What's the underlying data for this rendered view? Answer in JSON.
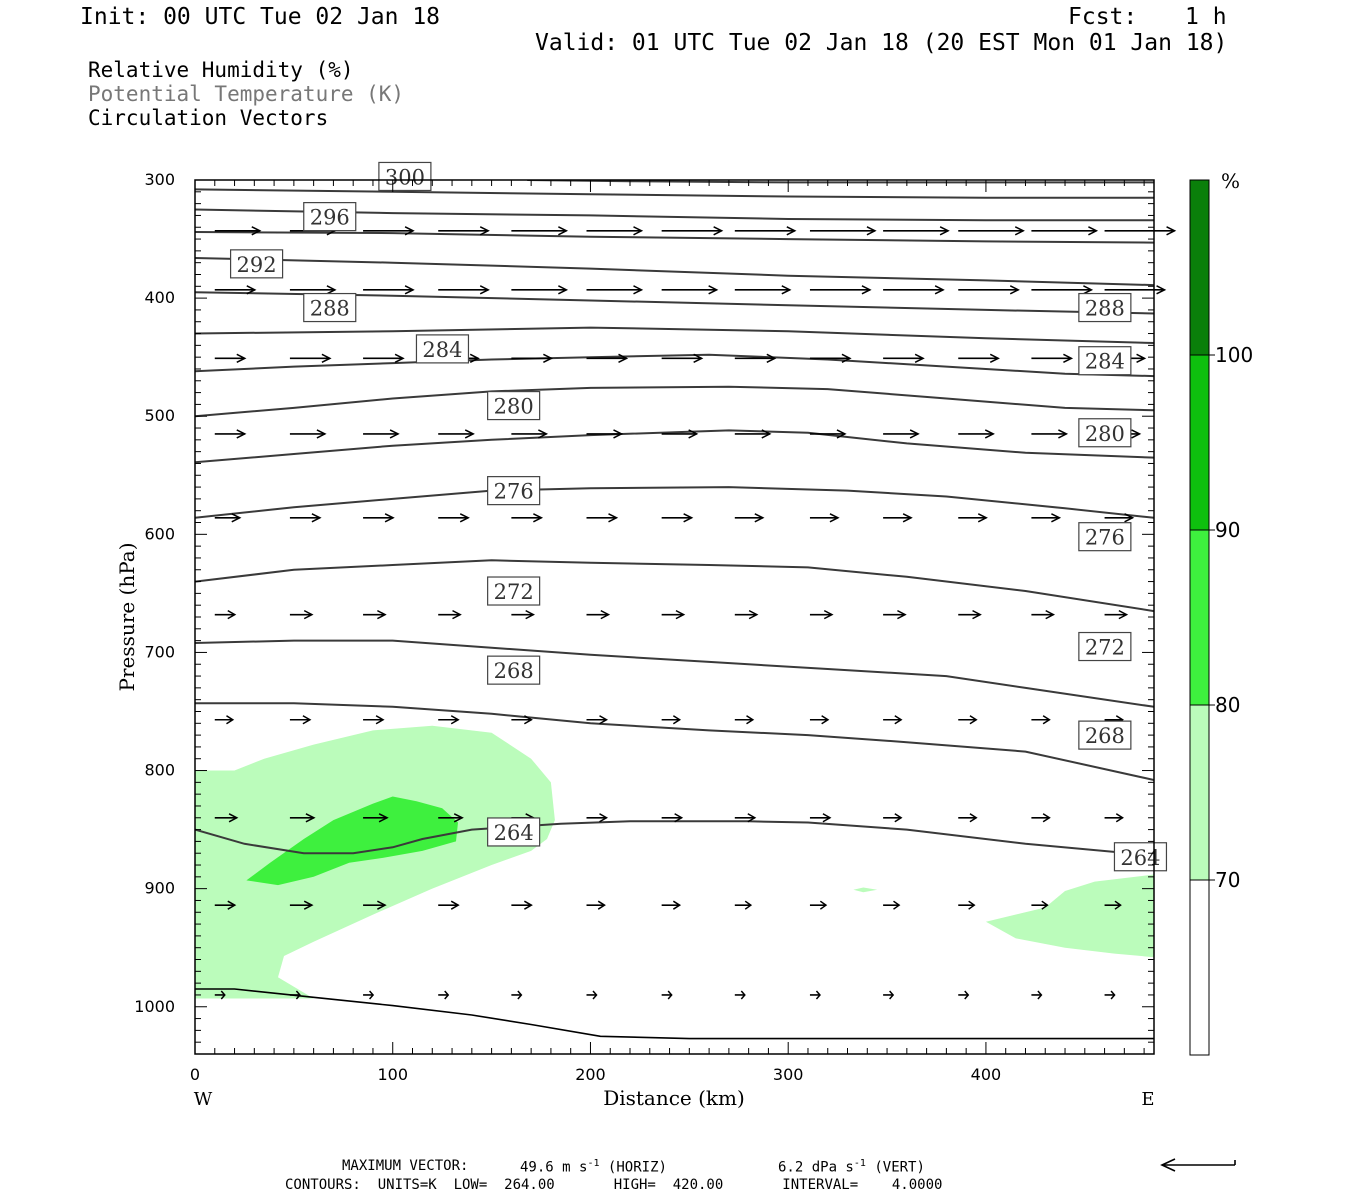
{
  "header": {
    "init": "Init: 00 UTC Tue 02 Jan 18",
    "fcst_label": "Fcst:",
    "fcst_value": "1 h",
    "valid": "Valid: 01 UTC Tue 02 Jan 18 (20 EST Mon 01 Jan 18)"
  },
  "legend": {
    "rh": "Relative Humidity (%)",
    "theta": "Potential Temperature (K)",
    "vectors": "Circulation Vectors"
  },
  "footer": {
    "max_vector_label": "MAXIMUM VECTOR:",
    "max_horiz": "49.6 m s",
    "max_horiz_unit": "(HORIZ)",
    "max_vert": "6.2 dPa s",
    "max_vert_unit": "(VERT)",
    "contours": "CONTOURS:  UNITS=K  LOW=  264.00       HIGH=  420.00       INTERVAL=    4.0000"
  },
  "colors": {
    "rh_70": "#bbfcbb",
    "rh_80": "#3ef03e",
    "rh_90": "#0ec00e",
    "rh_100": "#0a7f0a",
    "theta_line": "#3a3a3a"
  },
  "chart_data": {
    "type": "cross-section",
    "xlabel": "Distance (km)",
    "ylabel": "Pressure (hPa)",
    "xlim": [
      0,
      485
    ],
    "ylim": [
      300,
      1040
    ],
    "y_scale": "linear-pressure-inverted",
    "x_ticks": [
      "0",
      "100",
      "200",
      "300",
      "400"
    ],
    "y_ticks": [
      "300",
      "400",
      "500",
      "600",
      "700",
      "800",
      "900",
      "1000"
    ],
    "x_end_labels": {
      "left": "W",
      "right": "E"
    },
    "colorbar": {
      "unit": "%",
      "levels": [
        "70",
        "80",
        "90",
        "100"
      ]
    },
    "theta_contours": [
      {
        "label": "264",
        "points": [
          [
            0,
            850
          ],
          [
            25,
            862
          ],
          [
            55,
            870
          ],
          [
            80,
            870
          ],
          [
            100,
            865
          ],
          [
            115,
            858
          ],
          [
            140,
            850
          ],
          [
            185,
            845
          ],
          [
            220,
            843
          ],
          [
            280,
            843
          ],
          [
            310,
            844
          ],
          [
            360,
            850
          ],
          [
            420,
            862
          ],
          [
            485,
            872
          ]
        ],
        "labels_at": [
          [
            148,
            852
          ],
          [
            465,
            873
          ]
        ]
      },
      {
        "label": "268",
        "points": [
          [
            0,
            743
          ],
          [
            50,
            743
          ],
          [
            100,
            746
          ],
          [
            150,
            752
          ],
          [
            200,
            760
          ],
          [
            260,
            766
          ],
          [
            310,
            770
          ],
          [
            360,
            776
          ],
          [
            420,
            784
          ],
          [
            485,
            808
          ]
        ],
        "labels_at": [
          [
            148,
            715
          ],
          [
            447,
            770
          ]
        ]
      },
      {
        "label": "272",
        "points": [
          [
            0,
            692
          ],
          [
            50,
            690
          ],
          [
            100,
            690
          ],
          [
            150,
            696
          ],
          [
            200,
            702
          ],
          [
            260,
            708
          ],
          [
            320,
            714
          ],
          [
            380,
            720
          ],
          [
            420,
            730
          ],
          [
            485,
            746
          ]
        ],
        "labels_at": [
          [
            148,
            648
          ],
          [
            447,
            695
          ]
        ]
      },
      {
        "label": "276",
        "points": [
          [
            0,
            640
          ],
          [
            50,
            630
          ],
          [
            100,
            626
          ],
          [
            150,
            622
          ],
          [
            200,
            624
          ],
          [
            260,
            626
          ],
          [
            310,
            628
          ],
          [
            360,
            636
          ],
          [
            420,
            648
          ],
          [
            485,
            665
          ]
        ],
        "labels_at": [
          [
            148,
            563
          ],
          [
            447,
            602
          ]
        ]
      },
      {
        "label": "280",
        "points": [
          [
            0,
            586
          ],
          [
            50,
            577
          ],
          [
            100,
            570
          ],
          [
            150,
            563
          ],
          [
            200,
            561
          ],
          [
            270,
            560
          ],
          [
            330,
            563
          ],
          [
            380,
            568
          ],
          [
            440,
            578
          ],
          [
            485,
            586
          ]
        ],
        "labels_at": [
          [
            148,
            491
          ],
          [
            447,
            514
          ]
        ]
      },
      {
        "label": "284",
        "points": [
          [
            0,
            539
          ],
          [
            50,
            532
          ],
          [
            100,
            525
          ],
          [
            150,
            520
          ],
          [
            200,
            516
          ],
          [
            270,
            512
          ],
          [
            310,
            514
          ],
          [
            360,
            523
          ],
          [
            420,
            531
          ],
          [
            485,
            535
          ]
        ],
        "labels_at": [
          [
            112,
            443
          ],
          [
            447,
            453
          ]
        ]
      },
      {
        "label": "288",
        "points": [
          [
            0,
            500
          ],
          [
            50,
            493
          ],
          [
            100,
            485
          ],
          [
            150,
            479
          ],
          [
            200,
            476
          ],
          [
            270,
            475
          ],
          [
            320,
            477
          ],
          [
            380,
            485
          ],
          [
            440,
            493
          ],
          [
            485,
            495
          ]
        ],
        "labels_at": [
          [
            55,
            408
          ],
          [
            447,
            408
          ]
        ]
      },
      {
        "label": "292",
        "points": [
          [
            0,
            462
          ],
          [
            50,
            458
          ],
          [
            100,
            455
          ],
          [
            150,
            452
          ],
          [
            200,
            450
          ],
          [
            260,
            448
          ],
          [
            320,
            452
          ],
          [
            380,
            458
          ],
          [
            440,
            464
          ],
          [
            485,
            466
          ]
        ],
        "labels_at": [
          [
            18,
            371
          ]
        ]
      },
      {
        "label": "296",
        "points": [
          [
            0,
            430
          ],
          [
            100,
            428
          ],
          [
            200,
            425
          ],
          [
            300,
            428
          ],
          [
            400,
            434
          ],
          [
            485,
            438
          ]
        ],
        "labels_at": [
          [
            55,
            331
          ]
        ]
      },
      {
        "label": "300",
        "points": [
          [
            0,
            395
          ],
          [
            100,
            398
          ],
          [
            200,
            402
          ],
          [
            300,
            406
          ],
          [
            400,
            410
          ],
          [
            485,
            413
          ]
        ],
        "labels_at": [
          [
            93,
            297
          ]
        ]
      },
      {
        "label": "",
        "points": [
          [
            0,
            366
          ],
          [
            100,
            370
          ],
          [
            200,
            375
          ],
          [
            300,
            381
          ],
          [
            400,
            385
          ],
          [
            485,
            389
          ]
        ],
        "labels_at": []
      },
      {
        "label": "",
        "points": [
          [
            0,
            344
          ],
          [
            100,
            345
          ],
          [
            200,
            348
          ],
          [
            300,
            350
          ],
          [
            400,
            352
          ],
          [
            485,
            353
          ]
        ],
        "labels_at": []
      },
      {
        "label": "",
        "points": [
          [
            0,
            325
          ],
          [
            100,
            328
          ],
          [
            200,
            330
          ],
          [
            300,
            333
          ],
          [
            400,
            334
          ],
          [
            485,
            334
          ]
        ],
        "labels_at": []
      },
      {
        "label": "",
        "points": [
          [
            0,
            308
          ],
          [
            100,
            310
          ],
          [
            200,
            312
          ],
          [
            300,
            314
          ],
          [
            400,
            315
          ],
          [
            485,
            315
          ]
        ],
        "labels_at": []
      },
      {
        "label": "",
        "points": [
          [
            168,
            300
          ],
          [
            220,
            301
          ],
          [
            300,
            302
          ],
          [
            400,
            302
          ],
          [
            485,
            302
          ]
        ],
        "labels_at": []
      }
    ],
    "terrain": [
      [
        0,
        985
      ],
      [
        20,
        985
      ],
      [
        60,
        992
      ],
      [
        100,
        999
      ],
      [
        140,
        1007
      ],
      [
        170,
        1015
      ],
      [
        205,
        1025
      ],
      [
        250,
        1027
      ],
      [
        485,
        1027
      ]
    ],
    "rh_regions": [
      {
        "level": "70-80",
        "points": [
          [
            0,
            800
          ],
          [
            20,
            800
          ],
          [
            35,
            790
          ],
          [
            60,
            778
          ],
          [
            90,
            766
          ],
          [
            120,
            762
          ],
          [
            150,
            768
          ],
          [
            170,
            790
          ],
          [
            180,
            810
          ],
          [
            182,
            842
          ],
          [
            178,
            858
          ],
          [
            170,
            868
          ],
          [
            150,
            880
          ],
          [
            120,
            900
          ],
          [
            90,
            922
          ],
          [
            60,
            945
          ],
          [
            45,
            957
          ],
          [
            42,
            975
          ],
          [
            60,
            993
          ],
          [
            0,
            993
          ]
        ]
      },
      {
        "level": "70-80",
        "points": [
          [
            400,
            928
          ],
          [
            430,
            916
          ],
          [
            440,
            902
          ],
          [
            455,
            894
          ],
          [
            485,
            888
          ],
          [
            485,
            958
          ],
          [
            465,
            955
          ],
          [
            440,
            950
          ],
          [
            415,
            942
          ]
        ]
      },
      {
        "level": "70-80",
        "points": [
          [
            333,
            901
          ],
          [
            338,
            899
          ],
          [
            345,
            901
          ],
          [
            338,
            903
          ]
        ]
      },
      {
        "level": "80-90",
        "points": [
          [
            26,
            893
          ],
          [
            38,
            878
          ],
          [
            55,
            858
          ],
          [
            70,
            842
          ],
          [
            90,
            828
          ],
          [
            100,
            822
          ],
          [
            112,
            826
          ],
          [
            125,
            832
          ],
          [
            133,
            844
          ],
          [
            132,
            860
          ],
          [
            115,
            868
          ],
          [
            95,
            874
          ],
          [
            78,
            878
          ],
          [
            60,
            890
          ],
          [
            42,
            897
          ]
        ]
      }
    ],
    "vectors": [
      {
        "p": 343,
        "xs": [
          10,
          48,
          85,
          123,
          160,
          198,
          236,
          273,
          311,
          348,
          386,
          423,
          460
        ],
        "lens": [
          45,
          45,
          50,
          50,
          55,
          55,
          60,
          60,
          65,
          65,
          65,
          65,
          70
        ]
      },
      {
        "p": 393,
        "xs": [
          10,
          48,
          85,
          123,
          160,
          198,
          236,
          273,
          311,
          348,
          386,
          423,
          460
        ],
        "lens": [
          40,
          45,
          50,
          50,
          55,
          55,
          55,
          55,
          60,
          60,
          60,
          60,
          60
        ]
      },
      {
        "p": 451,
        "xs": [
          10,
          48,
          85,
          123,
          160,
          198,
          236,
          273,
          311,
          348,
          386,
          423,
          460
        ],
        "lens": [
          30,
          40,
          40,
          40,
          40,
          40,
          40,
          40,
          40,
          40,
          40,
          40,
          40
        ]
      },
      {
        "p": 515,
        "xs": [
          10,
          48,
          85,
          123,
          160,
          198,
          236,
          273,
          311,
          348,
          386,
          423,
          460
        ],
        "lens": [
          30,
          35,
          35,
          35,
          35,
          35,
          35,
          35,
          35,
          35,
          35,
          35,
          35
        ]
      },
      {
        "p": 586,
        "xs": [
          10,
          48,
          85,
          123,
          160,
          198,
          236,
          273,
          311,
          348,
          386,
          423,
          460
        ],
        "lens": [
          25,
          30,
          30,
          30,
          30,
          30,
          30,
          28,
          28,
          28,
          28,
          28,
          28
        ]
      },
      {
        "p": 668,
        "xs": [
          10,
          48,
          85,
          123,
          160,
          198,
          236,
          273,
          311,
          348,
          386,
          423,
          460
        ],
        "lens": [
          20,
          22,
          22,
          22,
          22,
          22,
          22,
          22,
          22,
          22,
          22,
          22,
          22
        ]
      },
      {
        "p": 757,
        "xs": [
          10,
          48,
          85,
          123,
          160,
          198,
          236,
          273,
          311,
          348,
          386,
          423,
          460
        ],
        "lens": [
          18,
          20,
          20,
          20,
          20,
          20,
          18,
          18,
          18,
          18,
          18,
          18,
          18
        ]
      },
      {
        "p": 840,
        "xs": [
          10,
          48,
          85,
          123,
          160,
          198,
          236,
          273,
          311,
          348,
          386,
          423,
          460
        ],
        "lens": [
          22,
          24,
          24,
          24,
          22,
          20,
          20,
          20,
          20,
          18,
          18,
          18,
          18
        ]
      },
      {
        "p": 914,
        "xs": [
          10,
          48,
          85,
          123,
          160,
          198,
          236,
          273,
          311,
          348,
          386,
          423,
          460
        ],
        "lens": [
          20,
          22,
          22,
          20,
          20,
          18,
          18,
          16,
          16,
          16,
          16,
          16,
          16
        ]
      },
      {
        "p": 990,
        "xs": [
          10,
          48,
          85,
          123,
          160,
          198,
          236,
          273,
          311,
          348,
          386,
          423,
          460
        ],
        "lens": [
          10,
          10,
          10,
          10,
          10,
          10,
          10,
          10,
          10,
          10,
          10,
          10,
          10
        ]
      }
    ]
  }
}
